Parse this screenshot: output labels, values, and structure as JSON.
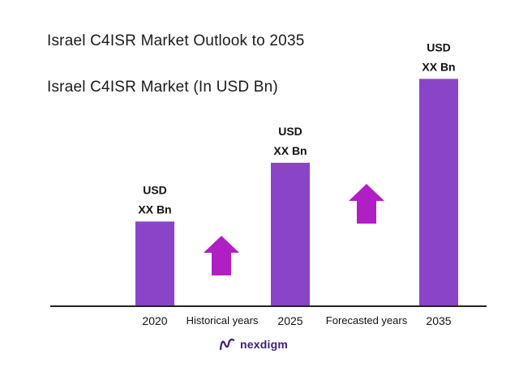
{
  "title": "Israel C4ISR Market Outlook to 2035",
  "subtitle": "Israel C4ISR Market (In USD Bn)",
  "colors": {
    "bar": "#8a44c8",
    "arrow": "#b01fc4",
    "axis": "#222222",
    "logo": "#3d1d7a"
  },
  "logo": {
    "text": "nexdigm",
    "icon": "nexdigm-logo-icon"
  },
  "chart_data": {
    "type": "bar",
    "categories": [
      "2020",
      "2025",
      "2035"
    ],
    "values": [
      1,
      1.7,
      2.7
    ],
    "value_labels": [
      [
        "USD",
        "XX Bn"
      ],
      [
        "USD",
        "XX Bn"
      ],
      [
        "USD",
        "XX Bn"
      ]
    ],
    "title": "Israel C4ISR Market (In USD Bn)",
    "xlabel": "",
    "ylabel": "",
    "ylim": [
      0,
      2.8
    ],
    "grid": false,
    "period_labels": [
      "Historical years",
      "Forecasted years"
    ],
    "trend_arrows": [
      {
        "period": "Historical years",
        "direction": "up",
        "icon": "up-arrow-icon"
      },
      {
        "period": "Forecasted years",
        "direction": "up",
        "icon": "up-arrow-icon"
      }
    ]
  }
}
